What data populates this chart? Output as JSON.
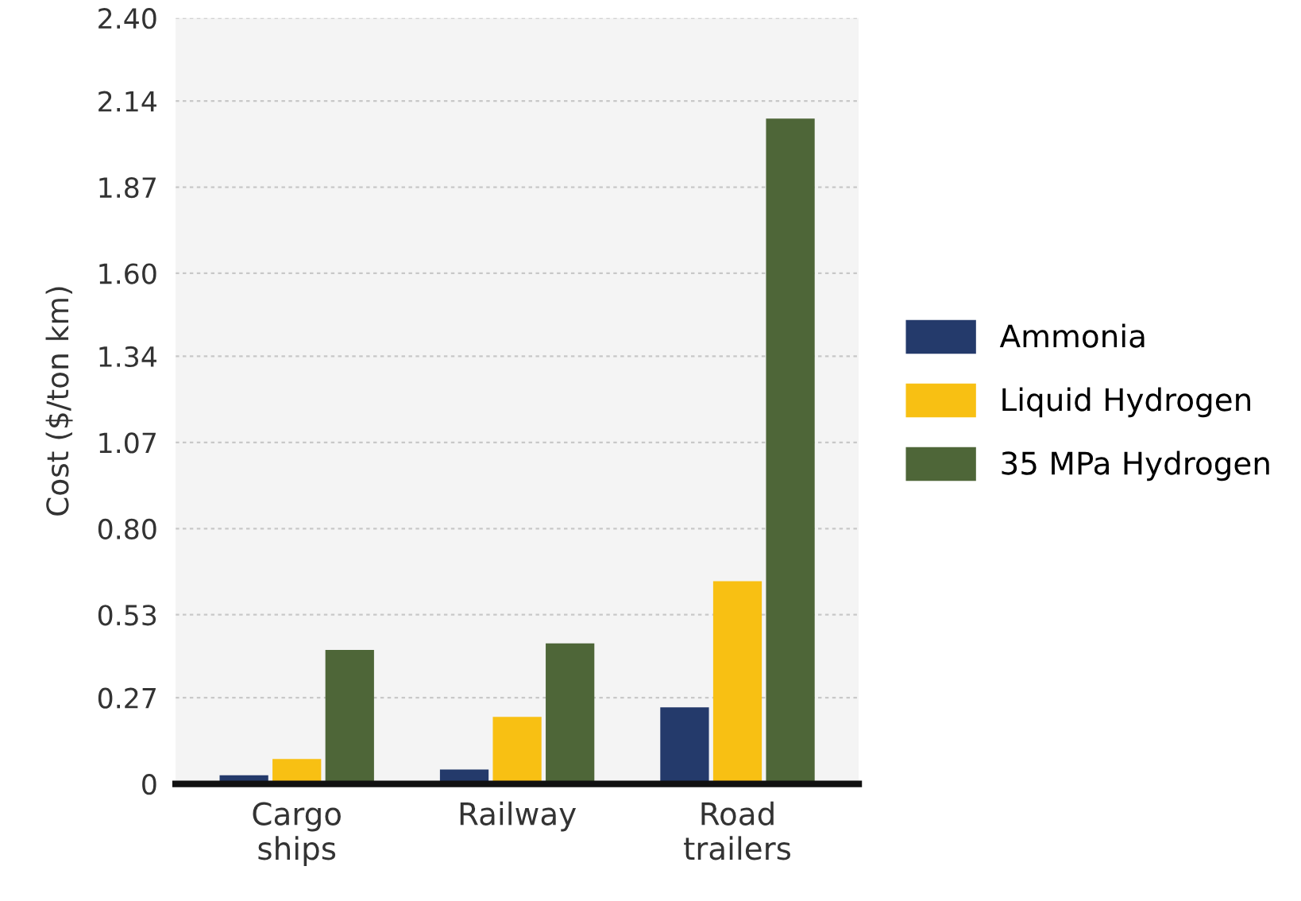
{
  "chart_data": {
    "type": "bar",
    "ylabel": "Cost ($/ton km)",
    "categories": [
      "Cargo\nships",
      "Railway",
      "Road\ntrailers"
    ],
    "series": [
      {
        "name": "Ammonia",
        "color": "#243a6b",
        "values": [
          0.027,
          0.045,
          0.24
        ]
      },
      {
        "name": "Liquid Hydrogen",
        "color": "#f8c013",
        "values": [
          0.078,
          0.21,
          0.635
        ]
      },
      {
        "name": "35 MPa Hydrogen",
        "color": "#4e6638",
        "values": [
          0.42,
          0.44,
          2.085
        ]
      }
    ],
    "ylim": [
      0,
      2.4
    ],
    "yticks": [
      0,
      {
        "value": 0.27,
        "label": "0.27"
      },
      {
        "value": 0.53,
        "label": "0.53"
      },
      {
        "value": 0.8,
        "label": "0.80"
      },
      {
        "value": 1.07,
        "label": "1.07"
      },
      {
        "value": 1.34,
        "label": "1.34"
      },
      {
        "value": 1.6,
        "label": "1.60"
      },
      {
        "value": 1.87,
        "label": "1.87"
      },
      {
        "value": 2.14,
        "label": "2.14"
      },
      {
        "value": 2.4,
        "label": "2.40"
      }
    ],
    "grid": "y",
    "legend": "right"
  }
}
